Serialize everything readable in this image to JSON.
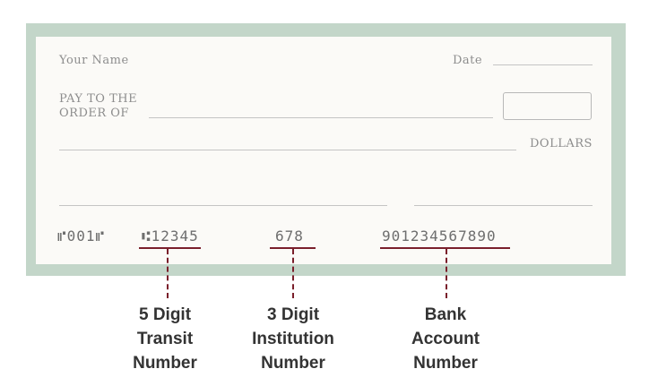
{
  "cheque": {
    "your_name": "Your Name",
    "date_label": "Date",
    "pay_to_line1": "PAY TO THE",
    "pay_to_line2": "ORDER OF",
    "dollars_label": "DOLLARS"
  },
  "micr": {
    "cheque_number": "⑈001⑈",
    "transit": "⑆12345",
    "institution": "678",
    "account": "901234567890"
  },
  "captions": {
    "transit": [
      "5 Digit",
      "Transit",
      "Number"
    ],
    "institution": [
      "3 Digit",
      "Institution",
      "Number"
    ],
    "account": [
      "Bank",
      "Account",
      "Number"
    ]
  },
  "colors": {
    "frame": "#c3d6c9",
    "cheque": "#fbfaf7",
    "accent": "#7a1f2b"
  }
}
